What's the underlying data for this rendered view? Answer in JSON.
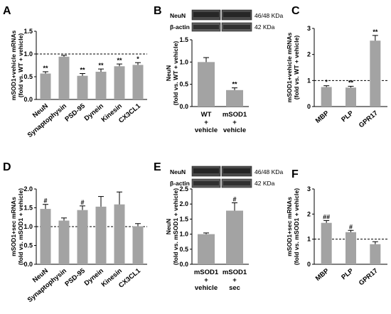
{
  "colors": {
    "bar": "#a3a3a3",
    "axis": "#000000",
    "reference_line": "#000000"
  },
  "chart_data": [
    {
      "panel": "A",
      "type": "bar",
      "ylabel": [
        "mSOD1+vehicle mRNAs",
        "(fold vs. WT + vehicle)"
      ],
      "ylim": [
        0.0,
        1.5
      ],
      "yticks": [
        "0.0",
        "0.5",
        "1.0",
        "1.5"
      ],
      "reference_line": 1.0,
      "categories": [
        "NeuN",
        "Synaptophysin",
        "PSD-95",
        "Dynein",
        "Kinesin",
        "CX3CL1"
      ],
      "values": [
        0.57,
        0.94,
        0.52,
        0.61,
        0.73,
        0.76
      ],
      "errors": [
        0.04,
        0.03,
        0.05,
        0.06,
        0.05,
        0.05
      ],
      "significance": [
        "**",
        "",
        "**",
        "**",
        "**",
        "*"
      ]
    },
    {
      "panel": "B",
      "type": "bar",
      "ylabel": [
        "NeuN",
        "(fold vs. WT + vehicle)"
      ],
      "ylim": [
        0.0,
        1.5
      ],
      "yticks": [
        "0.0",
        "0.5",
        "1.0",
        "1.5"
      ],
      "categories": [
        [
          "WT",
          "+",
          "vehicle"
        ],
        [
          "mSOD1",
          "+",
          "vehicle"
        ]
      ],
      "values": [
        1.0,
        0.37
      ],
      "errors": [
        0.1,
        0.05
      ],
      "significance": [
        "",
        "**"
      ],
      "blot": {
        "rows": [
          "NeuN",
          "β-actin"
        ],
        "sizes": [
          "46/48 KDa",
          "42 KDa"
        ]
      }
    },
    {
      "panel": "C",
      "type": "bar",
      "ylabel": [
        "mSOD1+vehicle mRNAs",
        "(fold vs. WT + vehicle)"
      ],
      "ylim": [
        0,
        3
      ],
      "yticks": [
        "0",
        "1",
        "2",
        "3"
      ],
      "reference_line": 1.0,
      "categories": [
        "MBP",
        "PLP",
        "GPR17"
      ],
      "values": [
        0.75,
        0.73,
        2.53
      ],
      "errors": [
        0.05,
        0.05,
        0.2
      ],
      "significance": [
        "*",
        "**",
        "**"
      ]
    },
    {
      "panel": "D",
      "type": "bar",
      "ylabel": [
        "mSOD1+sec mRNAs",
        "(fold vs. mSOD1 + vehicle)"
      ],
      "ylim": [
        0.0,
        2.0
      ],
      "yticks": [
        "0.0",
        "0.5",
        "1.0",
        "1.5",
        "2.0"
      ],
      "reference_line": 1.0,
      "categories": [
        "NeuN",
        "Synaptophysin",
        "PSD-95",
        "Dynein",
        "Kinesin",
        "CX3CL1"
      ],
      "values": [
        1.47,
        1.16,
        1.44,
        1.53,
        1.59,
        1.01
      ],
      "errors": [
        0.12,
        0.07,
        0.11,
        0.27,
        0.33,
        0.07
      ],
      "significance": [
        "#",
        "",
        "#",
        "",
        "",
        ""
      ]
    },
    {
      "panel": "E",
      "type": "bar",
      "ylabel": [
        "NeuN",
        "(fold vs. mSOD1 + vehicle)"
      ],
      "ylim": [
        0.0,
        2.5
      ],
      "yticks": [
        "0.0",
        "0.5",
        "1.0",
        "1.5",
        "2.0",
        "2.5"
      ],
      "categories": [
        [
          "mSOD1",
          "+",
          "vehicle"
        ],
        [
          "mSOD1",
          "+",
          "sec"
        ]
      ],
      "values": [
        1.0,
        1.78
      ],
      "errors": [
        0.04,
        0.26
      ],
      "significance": [
        "",
        "#"
      ],
      "blot": {
        "rows": [
          "NeuN",
          "β-actin"
        ],
        "sizes": [
          "46/48 KDa",
          "42 KDa"
        ]
      }
    },
    {
      "panel": "F",
      "type": "bar",
      "ylabel": [
        "mSOD1+sec mRNAs",
        "(fold vs. mSOD1 + vehicle)"
      ],
      "ylim": [
        0,
        3
      ],
      "yticks": [
        "0",
        "1",
        "2",
        "3"
      ],
      "reference_line": 1.0,
      "categories": [
        "MBP",
        "PLP",
        "GPR17"
      ],
      "values": [
        1.65,
        1.28,
        0.8
      ],
      "errors": [
        0.09,
        0.07,
        0.1
      ],
      "significance": [
        "##",
        "#",
        ""
      ]
    }
  ]
}
